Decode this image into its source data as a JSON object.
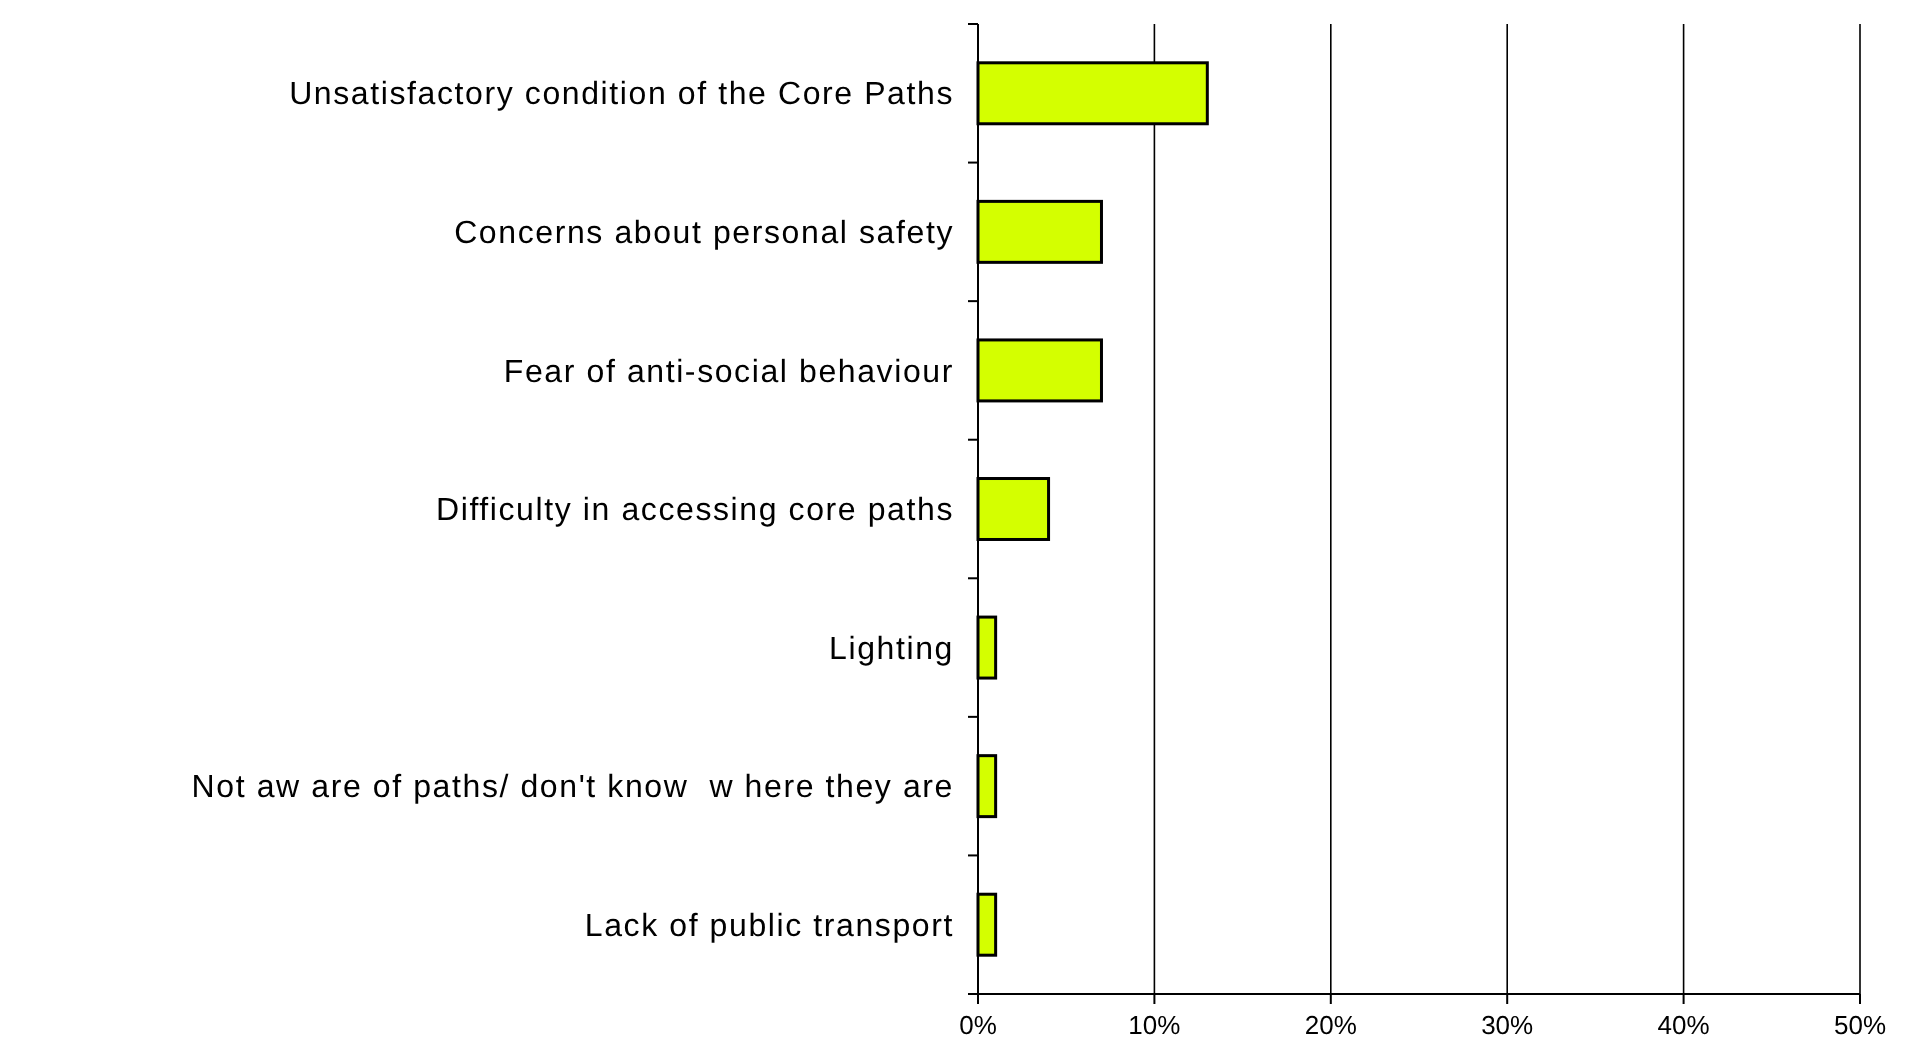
{
  "chart_data": {
    "type": "bar",
    "orientation": "horizontal",
    "categories": [
      "Unsatisfactory condition of the Core Paths",
      "Concerns about personal safety",
      "Fear of anti-social behaviour",
      "Difficulty in accessing core paths",
      "Lighting",
      "Not aw are of paths/ don't know  w here they are",
      "Lack of public transport"
    ],
    "values": [
      13,
      7,
      7,
      4,
      1,
      1,
      1
    ],
    "color": "#d4ff00",
    "xlim": [
      0,
      50
    ],
    "xticks": [
      {
        "value": 0,
        "label": "0%"
      },
      {
        "value": 10,
        "label": "10%"
      },
      {
        "value": 20,
        "label": "20%"
      },
      {
        "value": 30,
        "label": "30%"
      },
      {
        "value": 40,
        "label": "40%"
      },
      {
        "value": 50,
        "label": "50%"
      }
    ],
    "grid": "x"
  }
}
